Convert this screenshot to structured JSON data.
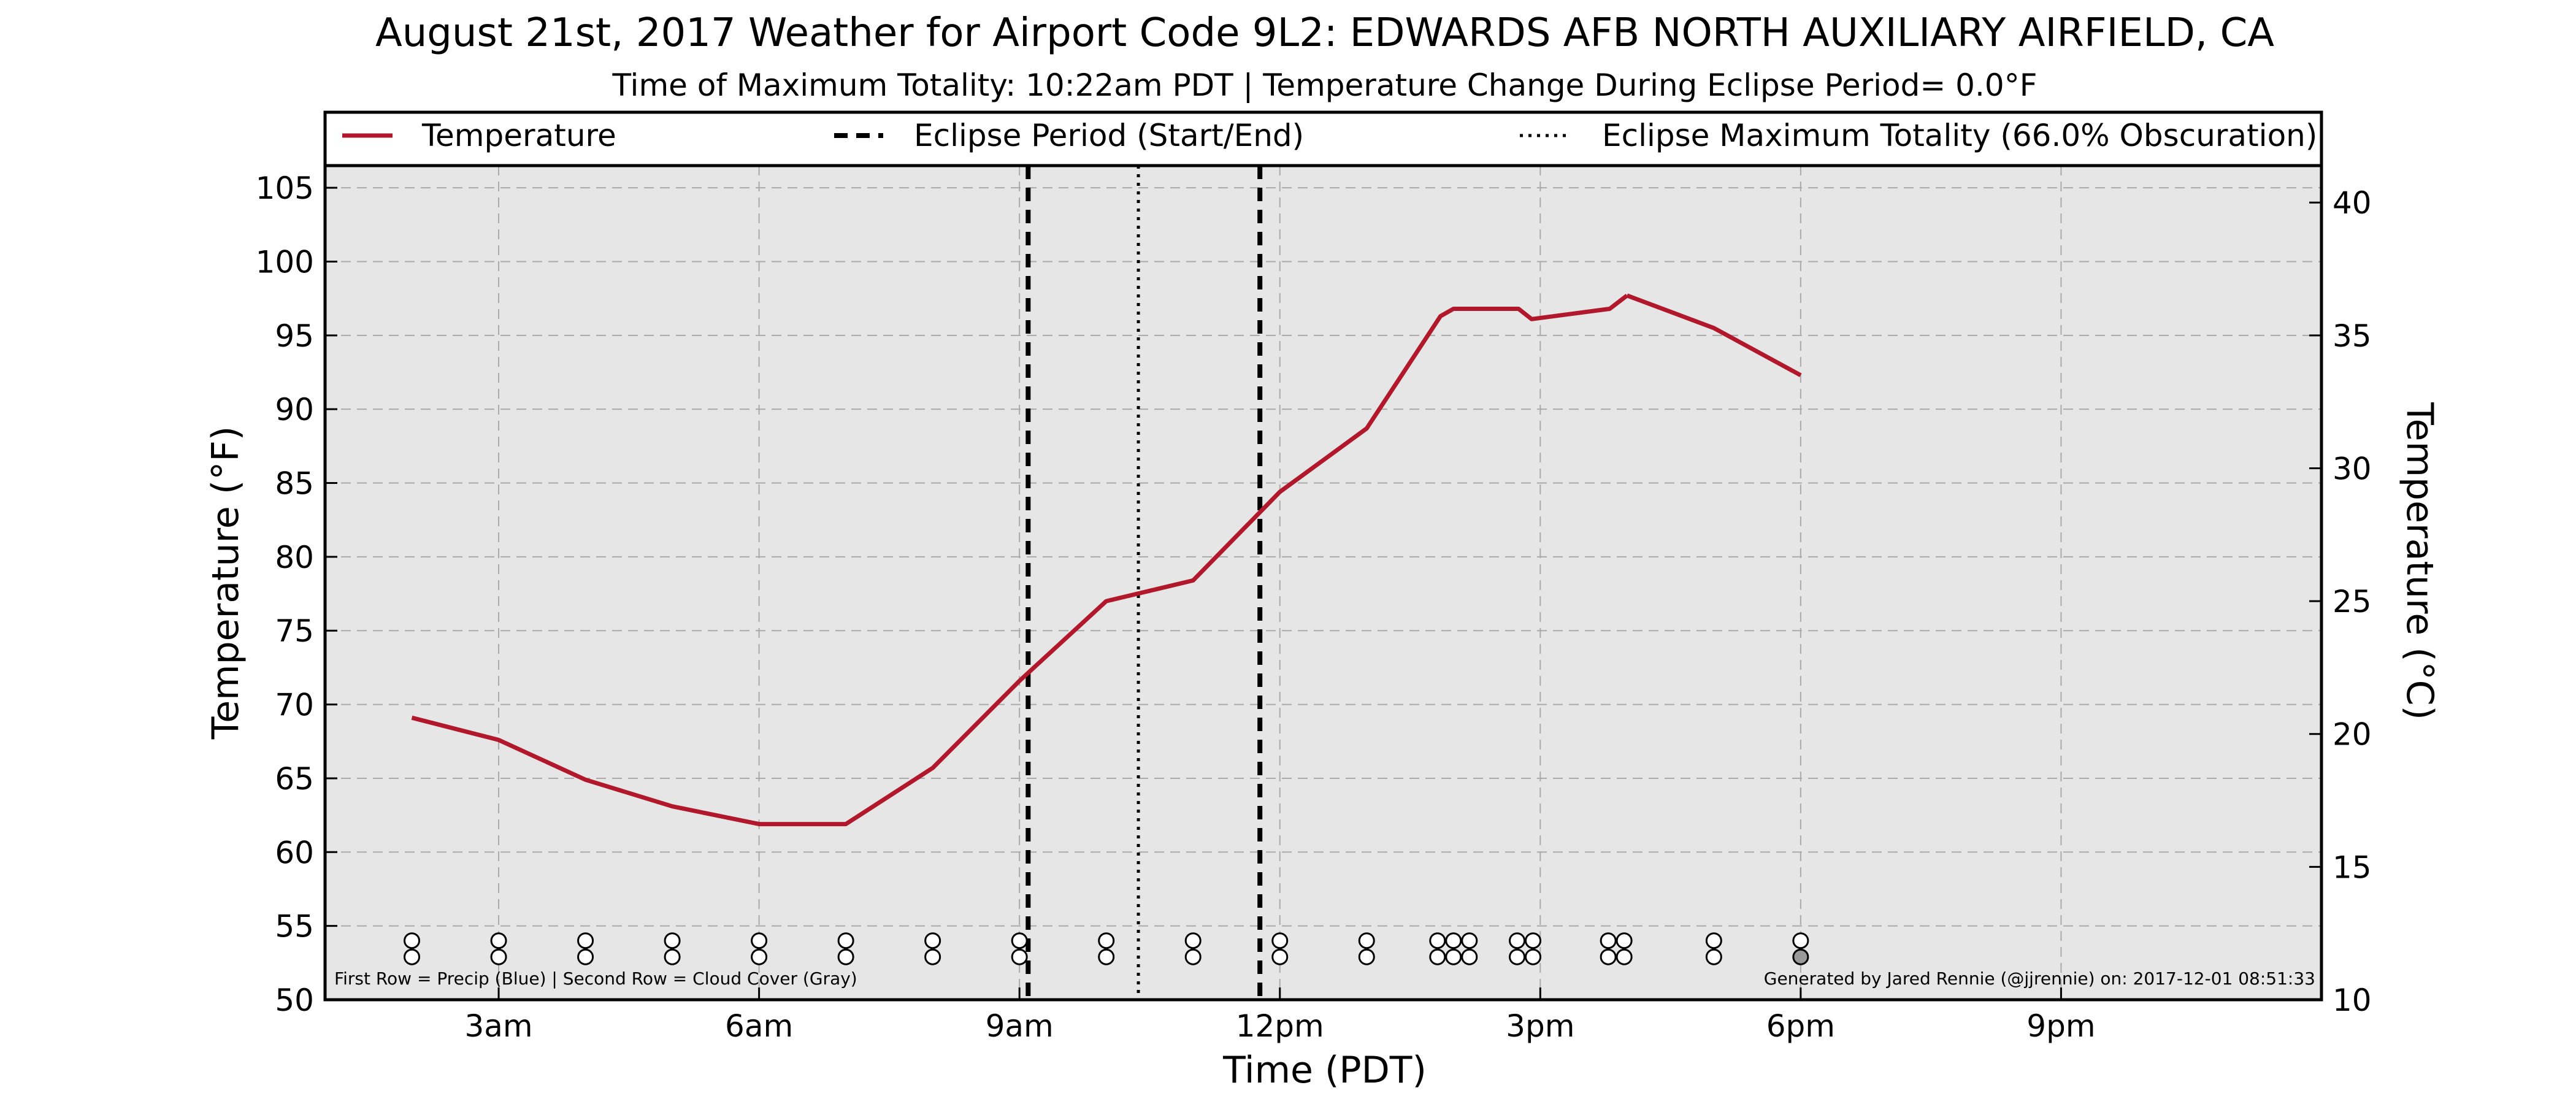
{
  "title": "August 21st, 2017 Weather for Airport Code 9L2: EDWARDS AFB NORTH AUXILIARY AIRFIELD, CA",
  "subtitle": "Time of Maximum Totality: 10:22am PDT | Temperature Change During Eclipse Period= 0.0°F",
  "footnote_left": "First Row = Precip (Blue) | Second Row = Cloud Cover (Gray)",
  "footnote_right": "Generated by Jared Rennie (@jjrennie) on: 2017-12-01 08:51:33",
  "colors": {
    "temperature": "#b2182b",
    "plot_bg": "#e6e6e6",
    "grid": "#aaaaaa",
    "eclipse": "#000000",
    "marker_fill": "#ffffff",
    "marker_gray": "#999999"
  },
  "chart_data": {
    "type": "line",
    "xlabel": "Time (PDT)",
    "ylabel": "Temperature (°F)",
    "ylabel_right": "Temperature (°C)",
    "xlim": [
      1,
      24
    ],
    "ylim": [
      50,
      106.5
    ],
    "ylim_right": [
      10,
      41.39
    ],
    "x_ticks": [
      {
        "x": 3,
        "label": "3am"
      },
      {
        "x": 6,
        "label": "6am"
      },
      {
        "x": 9,
        "label": "9am"
      },
      {
        "x": 12,
        "label": "12pm"
      },
      {
        "x": 15,
        "label": "3pm"
      },
      {
        "x": 18,
        "label": "6pm"
      },
      {
        "x": 21,
        "label": "9pm"
      }
    ],
    "y_ticks": [
      50,
      55,
      60,
      65,
      70,
      75,
      80,
      85,
      90,
      95,
      100,
      105
    ],
    "y_ticks_right": [
      10,
      15,
      20,
      25,
      30,
      35,
      40
    ],
    "grid": true,
    "legend": {
      "placement": "top",
      "entries": [
        {
          "label": "Temperature",
          "style": "solid"
        },
        {
          "label": "Eclipse Period (Start/End)",
          "style": "dashed"
        },
        {
          "label": "Eclipse Maximum Totality (66.0% Obscuration)",
          "style": "dotted"
        }
      ]
    },
    "series": [
      {
        "name": "Temperature",
        "x": [
          2,
          3,
          4,
          5,
          6,
          7,
          8,
          9,
          10,
          11,
          12,
          13,
          13.85,
          14,
          14.75,
          14.9,
          15.8,
          16
        ],
        "y": [
          69.1,
          67.6,
          64.9,
          63.1,
          61.9,
          61.9,
          65.7,
          71.6,
          77.0,
          78.4,
          84.4,
          88.7,
          96.3,
          96.8,
          96.8,
          96.1,
          96.8,
          97.7
        ]
      },
      {
        "name": "Temperature",
        "x": [
          16,
          17,
          18
        ],
        "y": [
          97.7,
          95.5,
          92.3
        ]
      }
    ],
    "eclipse_start": 9.1,
    "eclipse_end": 11.77,
    "eclipse_max": 10.37,
    "observation_times": [
      2,
      3,
      4,
      5,
      6,
      7,
      8,
      9,
      10,
      11,
      12,
      13,
      13.85,
      14,
      14.15,
      14.75,
      14.9,
      15.8,
      15.95,
      17,
      18
    ],
    "cloud_gray_times": [
      18
    ]
  }
}
